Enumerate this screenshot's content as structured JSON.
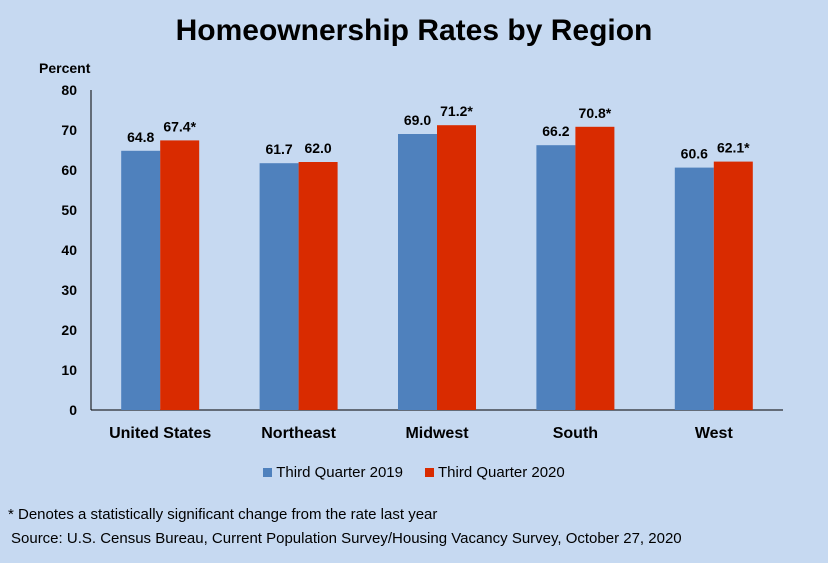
{
  "chart_data": {
    "type": "bar",
    "title": "Homeownership Rates by Region",
    "ylabel": "Percent",
    "xlabel": "",
    "ylim": [
      0,
      80
    ],
    "yticks": [
      0,
      10,
      20,
      30,
      40,
      50,
      60,
      70,
      80
    ],
    "grid": false,
    "legend_position": "bottom",
    "categories": [
      "United States",
      "Northeast",
      "Midwest",
      "South",
      "West"
    ],
    "series": [
      {
        "name": "Third Quarter 2019",
        "color": "#4f81bd",
        "values": [
          64.8,
          61.7,
          69.0,
          66.2,
          60.6
        ],
        "labels": [
          "64.8",
          "61.7",
          "69.0",
          "66.2",
          "60.6"
        ]
      },
      {
        "name": "Third Quarter 2020",
        "color": "#d92b00",
        "values": [
          67.4,
          62.0,
          71.2,
          70.8,
          62.1
        ],
        "labels": [
          "67.4*",
          "62.0",
          "71.2*",
          "70.8*",
          "62.1*"
        ]
      }
    ]
  },
  "footnote": "* Denotes a statistically significant change from the rate last year",
  "source": "Source: U.S. Census Bureau, Current Population Survey/Housing Vacancy Survey, October 27, 2020"
}
